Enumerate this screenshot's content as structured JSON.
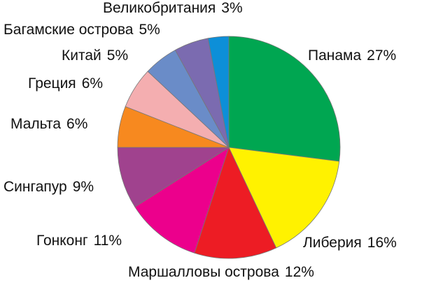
{
  "chart_data": {
    "type": "pie",
    "categories": [
      "Панама",
      "Либерия",
      "Маршалловы острова",
      "Гонконг",
      "Сингапур",
      "Мальта",
      "Греция",
      "Китай",
      "Багамские острова",
      "Великобритания"
    ],
    "values": [
      27,
      16,
      12,
      11,
      9,
      6,
      6,
      5,
      5,
      3
    ],
    "value_labels": [
      "27%",
      "16%",
      "12%",
      "11%",
      "9%",
      "6%",
      "6%",
      "5%",
      "5%",
      "3%"
    ],
    "colors": [
      "#00a651",
      "#fff200",
      "#ed1c24",
      "#ec008c",
      "#a0428e",
      "#f7891f",
      "#f4aeb0",
      "#6a8cc8",
      "#7b6bb0",
      "#0d8fd8"
    ]
  }
}
